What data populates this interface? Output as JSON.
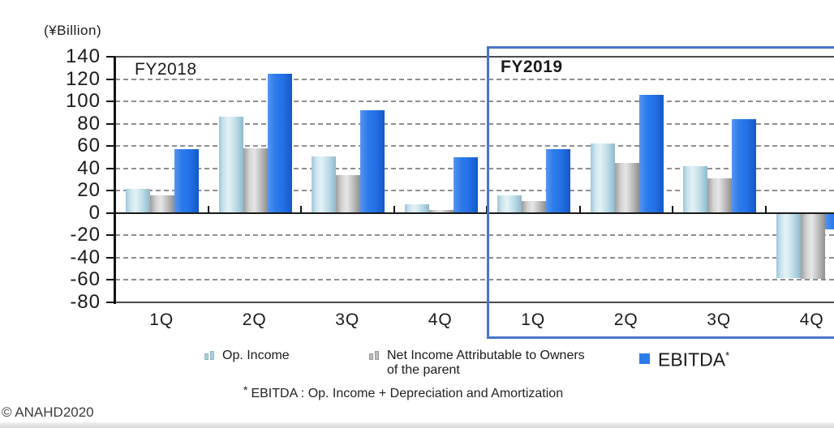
{
  "copyright": "© ANAHD2020",
  "footnote": {
    "marker": "*",
    "text": "EBITDA :  Op. Income + Depreciation and Amortization"
  },
  "legend": [
    {
      "label": "Op. Income",
      "color": "#b5d7e3"
    },
    {
      "label": "Net Income Attributable to Owners",
      "label2": "of the parent",
      "color": "#bdbdbd"
    },
    {
      "label": "EBITDA",
      "sup": "*",
      "color": "#2b7bea"
    }
  ],
  "colors": {
    "op_income": "#b5d7e3",
    "net_income": "#bdbdbd",
    "ebitda": "#2376e8",
    "highlight_border": "#4a74c8",
    "gridline": "#8f8f8f"
  },
  "chart_data": {
    "type": "bar",
    "unit_label": "(¥Billion)",
    "unit": "¥ Billion",
    "title": "",
    "xlabel": "",
    "ylabel": "(¥Billion)",
    "ylim": [
      -80,
      140
    ],
    "ytick_step": 20,
    "ytick_labels": [
      "140",
      "120",
      "100",
      "80",
      "60",
      "40",
      "20",
      "0",
      "-20",
      "-40",
      "-60",
      "-80"
    ],
    "grid": "horizontal dashed",
    "legend_position": "bottom",
    "fy_labels": [
      "FY2018",
      "FY2019"
    ],
    "highlight_box": "FY2019",
    "categories": [
      "FY2018 1Q",
      "FY2018 2Q",
      "FY2018 3Q",
      "FY2018 4Q",
      "FY2019 1Q",
      "FY2019 2Q",
      "FY2019 3Q",
      "FY2019 4Q"
    ],
    "x_tick_labels": [
      "1Q",
      "2Q",
      "3Q",
      "4Q",
      "1Q",
      "2Q",
      "3Q",
      "4Q"
    ],
    "series": [
      {
        "name": "Op. Income",
        "color_key": "op",
        "values": [
          22,
          86,
          51,
          8,
          16,
          62,
          42,
          -58
        ]
      },
      {
        "name": "Net Income Attributable to Owners of the parent",
        "color_key": "net",
        "values": [
          16,
          58,
          34,
          3,
          11,
          45,
          31,
          -59
        ]
      },
      {
        "name": "EBITDA",
        "color_key": "ebitda",
        "values": [
          57,
          125,
          92,
          50,
          57,
          106,
          84,
          -15
        ]
      }
    ]
  }
}
